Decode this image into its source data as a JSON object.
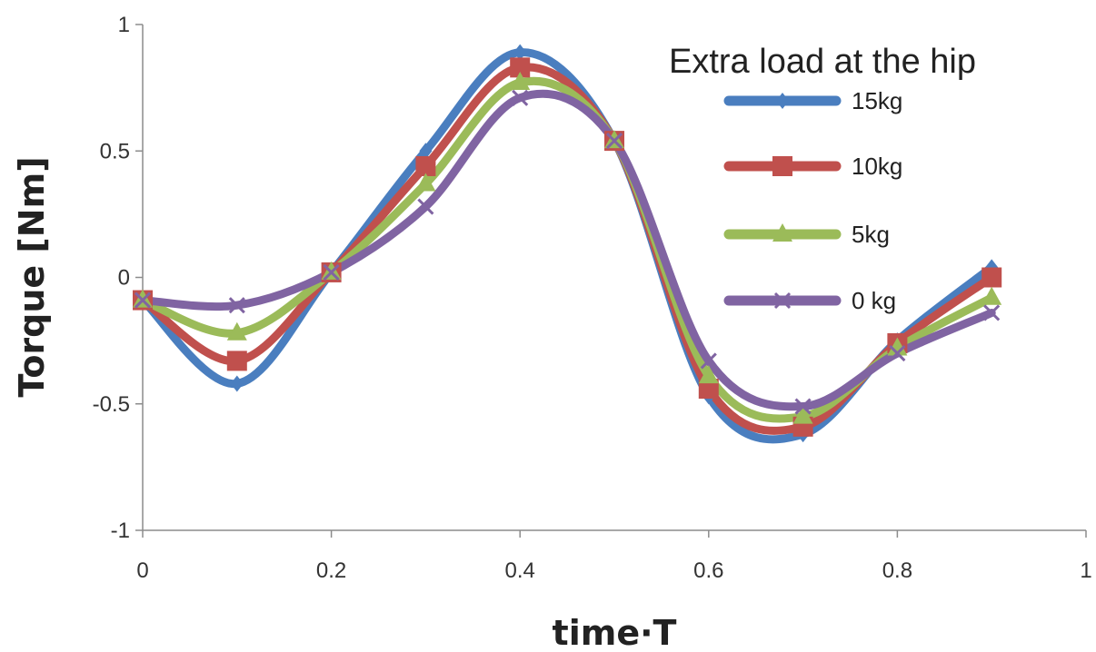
{
  "chart_data": {
    "type": "line",
    "title": "",
    "xlabel": "time·T",
    "ylabel": "Torque [Nm]",
    "xlim": [
      0,
      1
    ],
    "ylim": [
      -1,
      1
    ],
    "xticks": [
      0,
      0.2,
      0.4,
      0.6,
      0.8,
      1
    ],
    "xtick_labels": [
      "0",
      "0.2",
      "0.4",
      "0.6",
      "0.8",
      "1"
    ],
    "yticks": [
      -1,
      -0.5,
      0,
      0.5,
      1
    ],
    "ytick_labels": [
      "-1",
      "-0.5",
      "0",
      "0.5",
      "1"
    ],
    "grid": false,
    "legend": {
      "title": "Extra load at the hip",
      "placement": "top-right"
    },
    "x": [
      0,
      0.1,
      0.2,
      0.3,
      0.4,
      0.5,
      0.6,
      0.7,
      0.8,
      0.9
    ],
    "series": [
      {
        "name": "15kg",
        "color": "#4a7ebf",
        "marker": "diamond",
        "values": [
          -0.09,
          -0.42,
          0.02,
          0.5,
          0.89,
          0.54,
          -0.47,
          -0.62,
          -0.25,
          0.04
        ]
      },
      {
        "name": "10kg",
        "color": "#c0504d",
        "marker": "square",
        "values": [
          -0.09,
          -0.33,
          0.02,
          0.44,
          0.83,
          0.54,
          -0.44,
          -0.59,
          -0.26,
          0.0
        ]
      },
      {
        "name": "5kg",
        "color": "#9bbb59",
        "marker": "triangle",
        "values": [
          -0.09,
          -0.22,
          0.02,
          0.37,
          0.77,
          0.54,
          -0.39,
          -0.55,
          -0.28,
          -0.08
        ]
      },
      {
        "name": "0 kg",
        "color": "#8064a2",
        "marker": "x",
        "values": [
          -0.09,
          -0.11,
          0.02,
          0.28,
          0.71,
          0.54,
          -0.33,
          -0.51,
          -0.3,
          -0.14
        ]
      }
    ]
  }
}
